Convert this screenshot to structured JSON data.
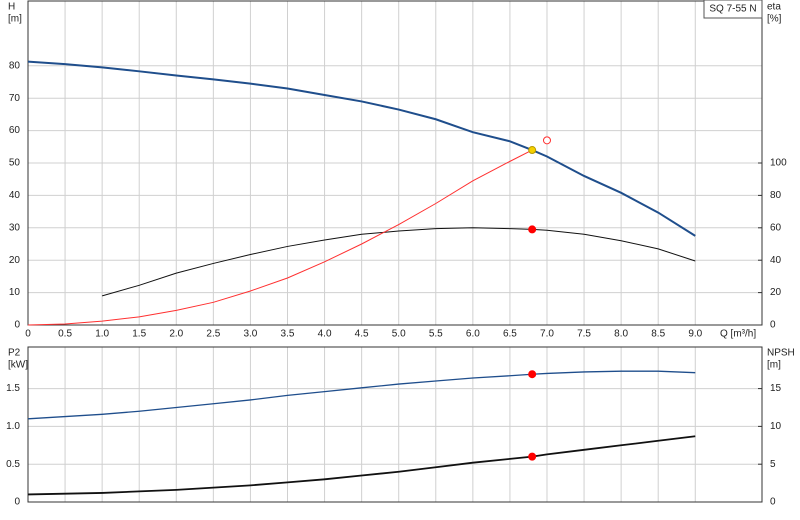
{
  "chart_data": [
    {
      "type": "line",
      "title": "SQ 7-55 N",
      "y_label": "H",
      "y_unit": "[m]",
      "y2_label": "eta",
      "y2_unit": "[%]",
      "x_label": "Q [m³/h]",
      "x": [
        0,
        0.5,
        1,
        1.5,
        2,
        2.5,
        3,
        3.5,
        4,
        4.5,
        5,
        5.5,
        6,
        6.5,
        6.8,
        7,
        7.5,
        8,
        8.5,
        9
      ],
      "series": [
        {
          "color": "#1f4e8c",
          "width": 2,
          "values": [
            81.3,
            80.5,
            79.5,
            78.3,
            77,
            75.8,
            74.5,
            73,
            71,
            69,
            66.5,
            63.5,
            59.5,
            56.7,
            54,
            52,
            46,
            40.8,
            34.7,
            27.5
          ]
        },
        {
          "color": "#111111",
          "width": 1,
          "axis": "y2",
          "values": [
            null,
            null,
            18,
            24.5,
            32,
            38,
            43.5,
            48.5,
            52.5,
            56,
            58,
            59.5,
            60,
            59.5,
            59,
            58.5,
            56,
            52,
            47,
            39.5
          ]
        },
        {
          "color": "#ff3030",
          "width": 1,
          "values": [
            0,
            0.3,
            1.2,
            2.5,
            4.5,
            7,
            10.5,
            14.5,
            19.5,
            25,
            31,
            37.5,
            44.5,
            50.5,
            54,
            null,
            null,
            null,
            null,
            null
          ]
        }
      ],
      "points": [
        {
          "x": 6.8,
          "y": 54,
          "color": "#f5d000"
        },
        {
          "x": 7.0,
          "y": 57,
          "color": "#ff3030",
          "open": true
        },
        {
          "x": 6.8,
          "y": 59,
          "color": "#ff0000",
          "axis": "y2"
        }
      ],
      "xlim": [
        0,
        9.9
      ],
      "xticks": [
        0,
        0.5,
        {
          "value": 1,
          "label": "1.0"
        },
        1.5,
        {
          "value": 2,
          "label": "2.0"
        },
        2.5,
        {
          "value": 3,
          "label": "3.0"
        },
        3.5,
        {
          "value": 4,
          "label": "4.0"
        },
        4.5,
        {
          "value": 5,
          "label": "5.0"
        },
        5.5,
        {
          "value": 6,
          "label": "6.0"
        },
        6.5,
        {
          "value": 7,
          "label": "7.0"
        },
        7.5,
        {
          "value": 8,
          "label": "8.0"
        },
        8.5,
        {
          "value": 9,
          "label": "9.0"
        }
      ],
      "ylim": [
        0,
        100
      ],
      "yticks": [
        0,
        10,
        20,
        30,
        40,
        50,
        60,
        70,
        80
      ],
      "y2lim": [
        0,
        200
      ],
      "y2ticks": [
        0,
        20,
        40,
        60,
        80,
        100
      ],
      "grid": true
    },
    {
      "type": "line",
      "y_label": "P2",
      "y_unit": "[kW]",
      "y2_label": "NPSH",
      "y2_unit": "[m]",
      "x": [
        0,
        0.5,
        1,
        1.5,
        2,
        2.5,
        3,
        3.5,
        4,
        4.5,
        5,
        5.5,
        6,
        6.5,
        6.8,
        7,
        7.5,
        8,
        8.5,
        9
      ],
      "series": [
        {
          "color": "#1f4e8c",
          "width": 1.3,
          "values": [
            1.1,
            1.13,
            1.16,
            1.2,
            1.25,
            1.3,
            1.35,
            1.41,
            1.46,
            1.51,
            1.56,
            1.6,
            1.64,
            1.67,
            1.69,
            1.7,
            1.72,
            1.73,
            1.73,
            1.71
          ]
        },
        {
          "color": "#111111",
          "width": 1.8,
          "axis": "y2",
          "values": [
            1.0,
            1.1,
            1.2,
            1.4,
            1.6,
            1.9,
            2.2,
            2.6,
            3.0,
            3.5,
            4.0,
            4.6,
            5.2,
            5.7,
            6.0,
            6.3,
            6.9,
            7.5,
            8.1,
            8.7
          ]
        }
      ],
      "points": [
        {
          "x": 6.8,
          "y": 1.69,
          "color": "#ff0000"
        },
        {
          "x": 6.8,
          "y": 6.0,
          "color": "#ff0000",
          "axis": "y2"
        }
      ],
      "xlim": [
        0,
        9.9
      ],
      "ylim": [
        0,
        2.05
      ],
      "yticks": [
        0,
        0.5,
        {
          "value": 1,
          "label": "1.0"
        },
        1.5
      ],
      "y2lim": [
        0,
        20.5
      ],
      "y2ticks": [
        0,
        5,
        10,
        15
      ],
      "grid": true
    }
  ]
}
